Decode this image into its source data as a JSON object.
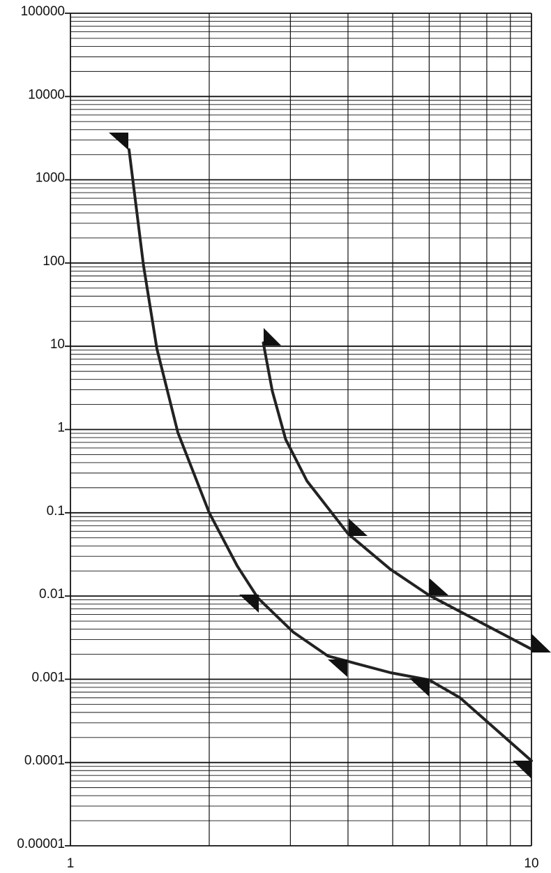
{
  "chart_data": {
    "type": "line",
    "log_x": true,
    "log_y": true,
    "grid": true,
    "xlim": [
      1,
      10
    ],
    "xticks": [
      1,
      10
    ],
    "ylim": [
      1e-05,
      100000
    ],
    "yticks": [
      100000,
      10000,
      1000,
      100,
      10,
      1,
      0.1,
      0.01,
      0.001,
      0.0001,
      1e-05
    ],
    "series": [
      {
        "color": "#222222",
        "x": [
          1.34,
          1.44,
          1.54,
          1.71,
          2,
          2.3,
          2.55,
          3.04,
          3.62,
          4.95,
          6,
          7,
          10
        ],
        "values": [
          2300,
          94,
          9.3,
          0.92,
          0.1,
          0.023,
          0.0095,
          0.0037,
          0.0019,
          0.0012,
          0.00098,
          0.0006,
          0.000105
        ]
      },
      {
        "color": "#222222",
        "x": [
          2.62,
          2.74,
          2.93,
          3.26,
          4,
          4.94,
          6,
          10
        ],
        "values": [
          11,
          2.9,
          0.76,
          0.24,
          0.056,
          0.021,
          0.0102,
          0.0023
        ]
      }
    ]
  }
}
